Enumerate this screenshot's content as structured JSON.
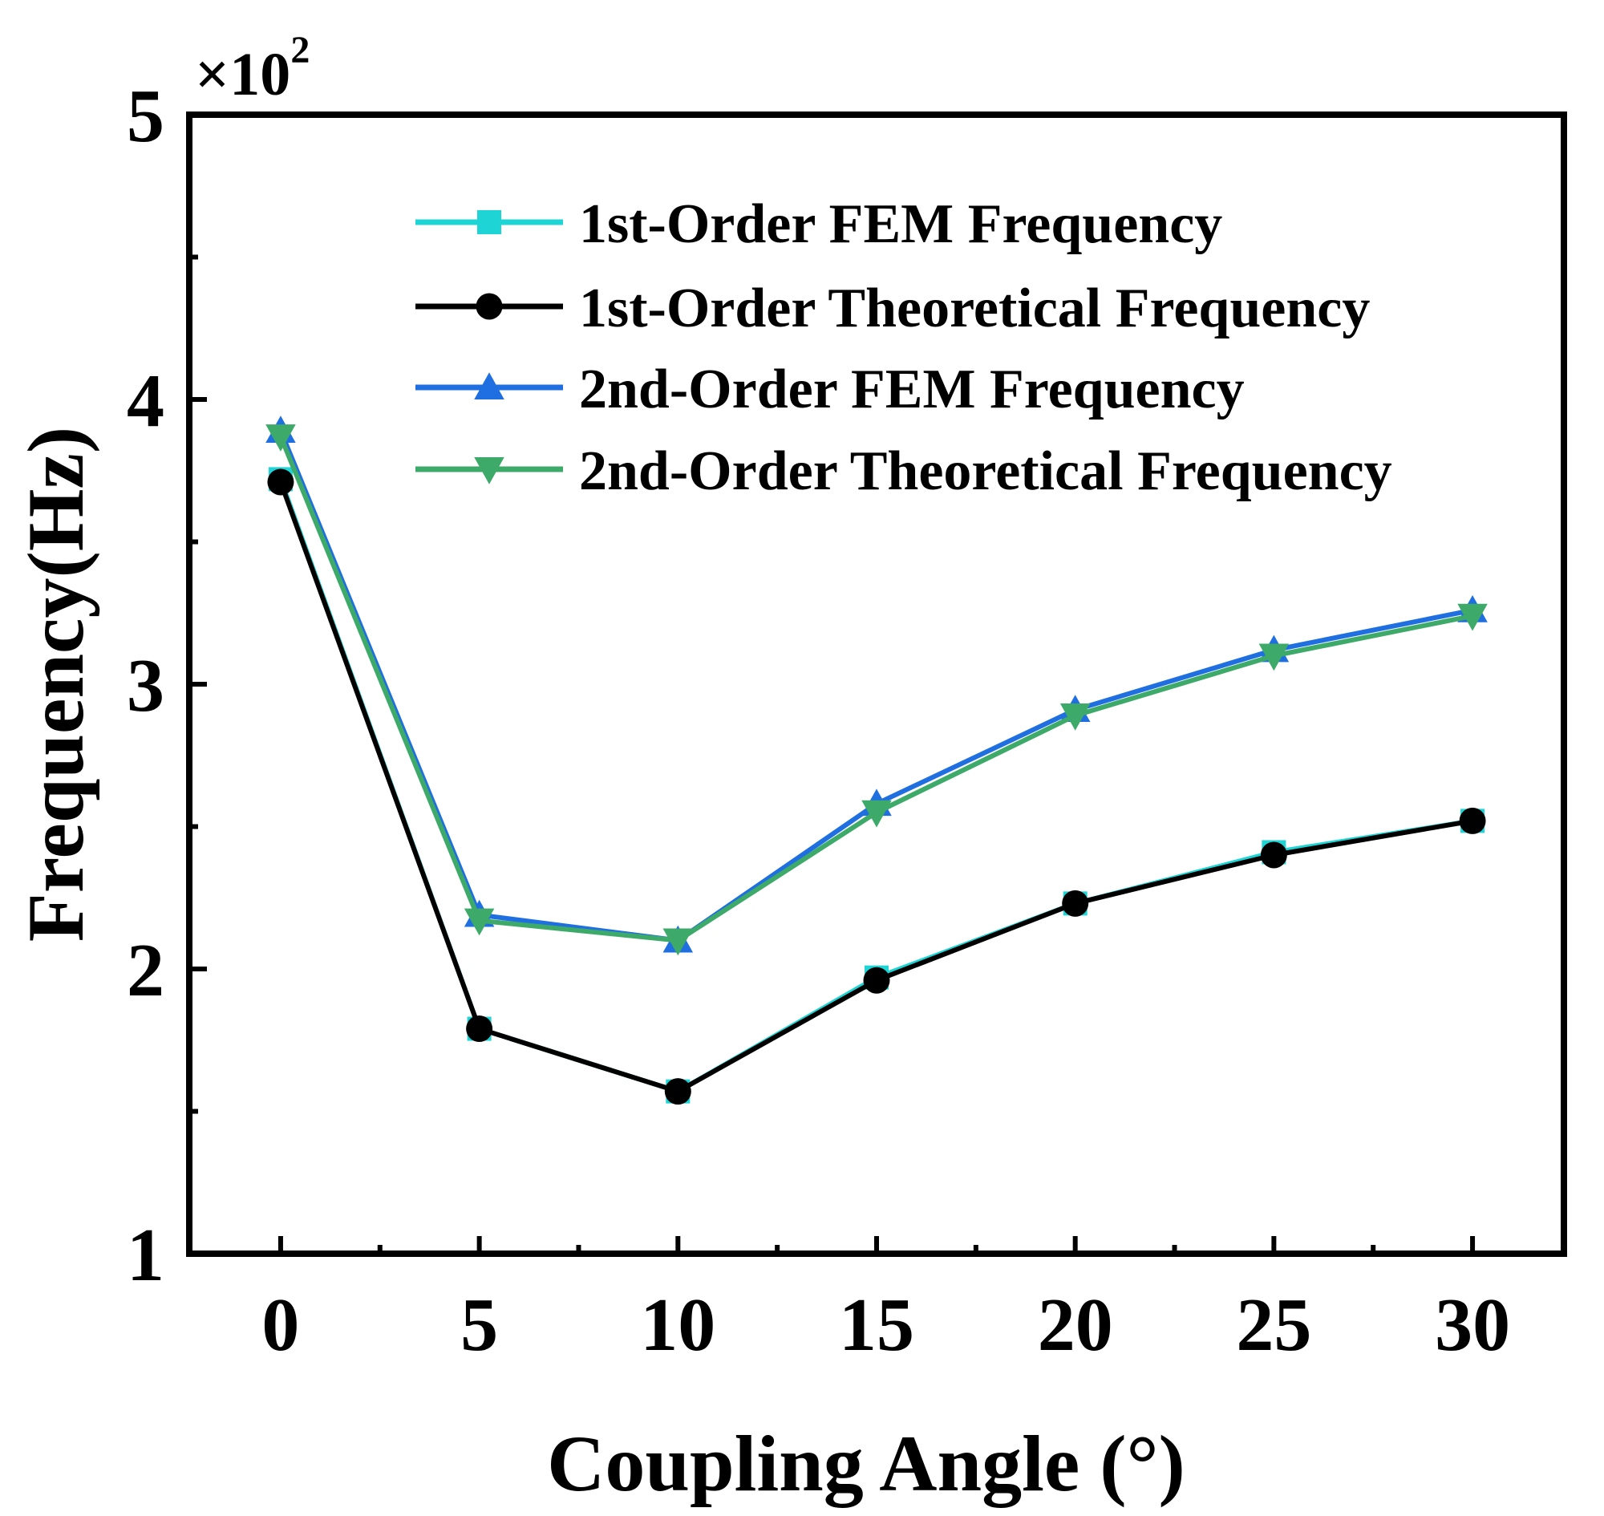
{
  "chart_data": {
    "type": "line",
    "xlabel": "Coupling Angle (°)",
    "ylabel": "Frequency(Hz)",
    "y_multiplier_text": "×10",
    "y_multiplier_exponent": "2",
    "x": [
      0,
      5,
      10,
      15,
      20,
      25,
      30
    ],
    "x_ticks": [
      "0",
      "5",
      "10",
      "15",
      "20",
      "25",
      "30"
    ],
    "y_ticks": [
      "1",
      "2",
      "3",
      "4",
      "5"
    ],
    "xlim": [
      -2.3,
      32.3
    ],
    "ylim": [
      1,
      5
    ],
    "grid": false,
    "legend_position": "top-right",
    "series": [
      {
        "name": "1st-Order FEM Frequency",
        "color": "#1fd4d4",
        "marker": "square",
        "values": [
          3.72,
          1.79,
          1.57,
          1.97,
          2.23,
          2.41,
          2.52
        ]
      },
      {
        "name": "1st-Order Theoretical Frequency",
        "color": "#000000",
        "marker": "circle",
        "values": [
          3.71,
          1.79,
          1.57,
          1.96,
          2.23,
          2.4,
          2.52
        ]
      },
      {
        "name": "2nd-Order FEM Frequency",
        "color": "#1f6fe0",
        "marker": "triangle-up",
        "values": [
          3.89,
          2.19,
          2.1,
          2.58,
          2.91,
          3.12,
          3.26
        ]
      },
      {
        "name": "2nd-Order Theoretical Frequency",
        "color": "#3daa6a",
        "marker": "triangle-down",
        "values": [
          3.87,
          2.17,
          2.1,
          2.55,
          2.89,
          3.1,
          3.24
        ]
      }
    ]
  }
}
